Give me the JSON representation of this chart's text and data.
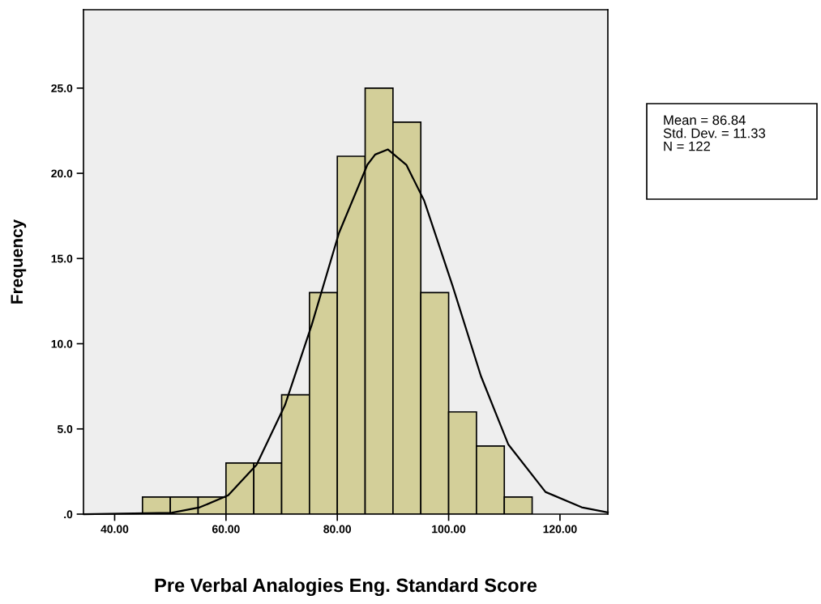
{
  "chart_data": {
    "type": "histogram",
    "xlabel": "Pre Verbal Analogies Eng. Standard Score",
    "ylabel": "Frequency",
    "bins": [
      45,
      50,
      55,
      60,
      65,
      70,
      75,
      80,
      85,
      90,
      95,
      100,
      105,
      110,
      115
    ],
    "values": [
      1,
      1,
      1,
      3,
      3,
      7,
      13,
      21,
      25,
      23,
      13,
      6,
      4,
      1
    ],
    "color": "#d3cf99",
    "series": [
      {
        "type": "line",
        "color": "#000000",
        "x": [
          34.5,
          50.2,
          55.3,
          60.4,
          65.5,
          70.6,
          75.4,
          80.3,
          85.4,
          86.8,
          89.1,
          92.4,
          95.6,
          100.7,
          105.8,
          110.7,
          117.4,
          123.9,
          128.6
        ],
        "values": [
          0,
          0.08,
          0.4,
          1.1,
          2.9,
          6.4,
          11.1,
          16.5,
          20.5,
          21.1,
          21.4,
          20.5,
          18.4,
          13.4,
          8.1,
          4.1,
          1.3,
          0.4,
          0.1
        ]
      }
    ],
    "xlim": [
      34.4,
      128.6
    ],
    "ylim": [
      0,
      29.6
    ],
    "xticks": [
      {
        "value": 40,
        "label": "40.00"
      },
      {
        "value": 60,
        "label": "60.00"
      },
      {
        "value": 80,
        "label": "80.00"
      },
      {
        "value": 100,
        "label": "100.00"
      },
      {
        "value": 120,
        "label": "120.00"
      }
    ],
    "yticks": [
      {
        "value": 0,
        "label": ".0"
      },
      {
        "value": 5,
        "label": "5.0"
      },
      {
        "value": 10,
        "label": "10.0"
      },
      {
        "value": 15,
        "label": "15.0"
      },
      {
        "value": 20,
        "label": "20.0"
      },
      {
        "value": 25,
        "label": "25.0"
      }
    ],
    "annotations": [
      "Mean = 86.84",
      "Std. Dev. = 11.33",
      "N = 122"
    ],
    "grid": false,
    "legend": false
  }
}
